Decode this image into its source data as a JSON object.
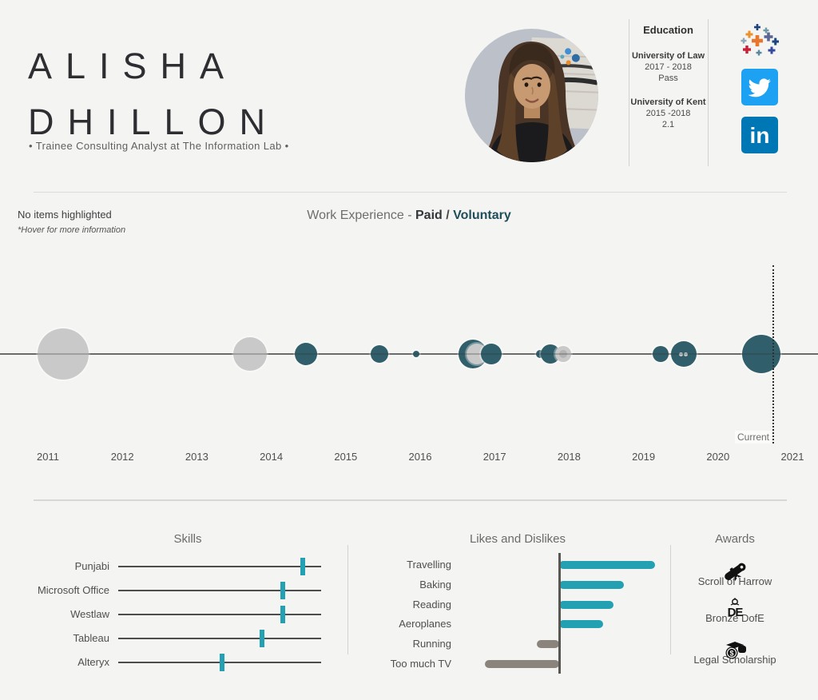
{
  "colors": {
    "background": "#f4f4f2",
    "mark_teal": "#305f6b",
    "mark_gray": "#c9c9c9",
    "accent_teal": "#23a1b2",
    "bar_gray": "#8a847d",
    "voluntary_text": "#1f4e5a",
    "twitter_blue": "#1da1f2",
    "linkedin_blue": "#0077b5"
  },
  "header": {
    "name_line1": "ALISHA",
    "name_line2": "DHILLON",
    "subtitle": "• Trainee Consulting Analyst at The Information Lab •",
    "education": {
      "title": "Education",
      "entries": [
        {
          "school": "University of Law",
          "years": "2017 - 2018",
          "result": "Pass"
        },
        {
          "school": "University of Kent",
          "years": "2015 -2018",
          "result": "2.1"
        }
      ]
    }
  },
  "icons": {
    "linkedin_glyph": "in",
    "dofe_glyph": "DE",
    "scholarship_symbol": "$"
  },
  "timeline": {
    "status_text": "No items highlighted",
    "hover_hint": "*Hover for more information",
    "title_prefix": "Work Experience - ",
    "title_paid": "Paid",
    "title_separator": " / ",
    "title_voluntary": "Voluntary",
    "current_label": "Current"
  },
  "awards": {
    "title": "Awards",
    "items": [
      {
        "label": "Scroll of Harrow",
        "icon": "scroll-icon"
      },
      {
        "label": "Bronze DofE",
        "icon": "dofe-icon"
      },
      {
        "label": "Legal Scholarship",
        "icon": "scholarship-icon"
      }
    ]
  },
  "chart_data": [
    {
      "type": "scatter",
      "title": "Work Experience - Paid / Voluntary",
      "xlabel": "Year",
      "x_ticks": [
        "2011",
        "2012",
        "2013",
        "2014",
        "2015",
        "2016",
        "2017",
        "2018",
        "2019",
        "2020",
        "2021"
      ],
      "x_range": [
        2011,
        2021
      ],
      "annotation": "Current",
      "legend": [
        "Paid = gray marks",
        "Voluntary = teal marks"
      ],
      "points": [
        {
          "year": 2011.2,
          "r": 32,
          "category": "paid"
        },
        {
          "year": 2013.71,
          "r": 21,
          "category": "paid"
        },
        {
          "year": 2014.47,
          "r": 14,
          "category": "voluntary"
        },
        {
          "year": 2015.45,
          "r": 11,
          "category": "voluntary"
        },
        {
          "year": 2015.95,
          "r": 4,
          "category": "voluntary"
        },
        {
          "year": 2016.71,
          "r": 18,
          "category": "voluntary"
        },
        {
          "year": 2016.76,
          "r": 13,
          "category": "paid"
        },
        {
          "year": 2016.95,
          "r": 13,
          "category": "voluntary"
        },
        {
          "year": 2017.61,
          "r": 5,
          "category": "voluntary"
        },
        {
          "year": 2017.75,
          "r": 12,
          "category": "voluntary"
        },
        {
          "year": 2017.92,
          "r": 10,
          "category": "paid",
          "detail": "inner-dot"
        },
        {
          "year": 2019.23,
          "r": 10,
          "category": "voluntary"
        },
        {
          "year": 2019.54,
          "r": 16,
          "category": "voluntary",
          "detail": "double-dot"
        },
        {
          "year": 2020.58,
          "r": 24,
          "category": "voluntary"
        }
      ]
    },
    {
      "type": "tick",
      "title": "Skills",
      "categories": [
        "Punjabi",
        "Microsoft Office",
        "Westlaw",
        "Tableau",
        "Alteryx"
      ],
      "values": [
        0.91,
        0.81,
        0.81,
        0.71,
        0.51
      ],
      "scale": [
        0,
        1
      ]
    },
    {
      "type": "bar",
      "title": "Likes and Dislikes",
      "categories": [
        "Travelling",
        "Baking",
        "Reading",
        "Aeroplanes",
        "Running",
        "Too much TV"
      ],
      "values": [
        120,
        81,
        68,
        55,
        -28,
        -93
      ],
      "note": "positive = like (teal, right of axis), negative = dislike (gray, left of axis); px length from axis"
    }
  ]
}
